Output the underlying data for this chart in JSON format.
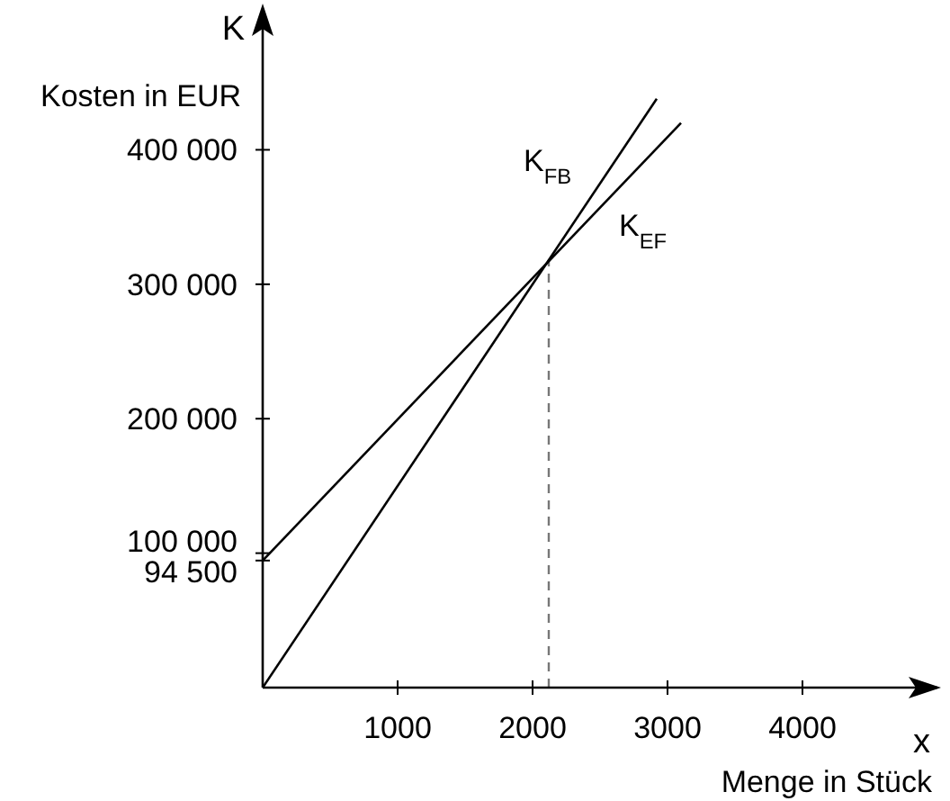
{
  "chart_data": {
    "type": "line",
    "xlabel": "Menge in Stück",
    "ylabel": "Kosten in EUR",
    "annotations": [
      "K",
      "x",
      "K$_{FB}$",
      "K$_{EF}$"
    ],
    "series": [
      {
        "color": "#000000",
        "x": [
          0,
          2920
        ],
        "values": [
          0,
          438000
        ]
      },
      {
        "color": "#000000",
        "x": [
          0,
          3100
        ],
        "values": [
          94500,
          420000
        ]
      }
    ],
    "xlim": [
      0,
      5000
    ],
    "xticks": [
      1000,
      2000,
      3000,
      4000
    ],
    "ylim": [
      0,
      490000
    ],
    "yticks": [
      {
        "value": 94500,
        "label": "94 500"
      },
      {
        "value": 100000,
        "label": "100 000"
      },
      {
        "value": 200000,
        "label": "200 000"
      },
      {
        "value": 300000,
        "label": "300 000"
      },
      {
        "value": 400000,
        "label": "400 000"
      }
    ],
    "ref_lines": [
      {
        "axis": "x",
        "value": 2120,
        "color": "#777777",
        "line_style": "dashed"
      }
    ],
    "grid": false,
    "legend": false,
    "marker": "none",
    "line_style": "solid"
  }
}
